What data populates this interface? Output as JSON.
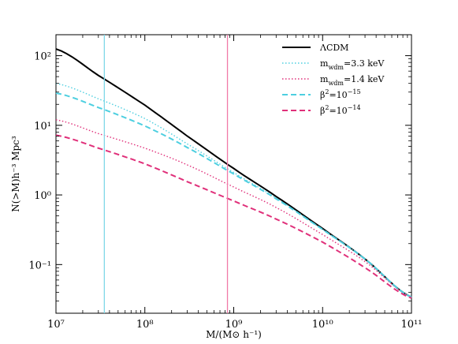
{
  "chart_data": {
    "type": "line",
    "title": "",
    "xlabel": "M/(M⊙ h⁻¹)",
    "ylabel": "N(>M)h⁻³ Mpc³",
    "xscale": "log",
    "yscale": "log",
    "xlim": [
      10000000,
      100000000000
    ],
    "ylim": [
      0.02,
      200
    ],
    "x_ticks": [
      "10⁷",
      "10⁸",
      "10⁹",
      "10¹⁰",
      "10¹¹"
    ],
    "y_ticks": [
      "10⁻¹",
      "10⁰",
      "10¹",
      "10²"
    ],
    "grid": false,
    "legend_position": "top-right",
    "x": [
      10000000,
      30000000,
      100000000,
      300000000,
      1000000000,
      3000000000,
      10000000000,
      30000000000,
      100000000000
    ],
    "series": [
      {
        "name": "ΛCDM",
        "color": "#000000",
        "style": "solid",
        "values": [
          125,
          52,
          19.5,
          7.0,
          2.4,
          0.95,
          0.33,
          0.12,
          0.034
        ]
      },
      {
        "name": "m_wdm=3.3 keV",
        "color": "#4dcfe0",
        "style": "dotted",
        "values": [
          40,
          24,
          12.5,
          5.4,
          2.1,
          0.9,
          0.32,
          0.12,
          0.034
        ]
      },
      {
        "name": "m_wdm=1.4 keV",
        "color": "#e0307a",
        "style": "dotted",
        "values": [
          12,
          7.6,
          4.7,
          2.7,
          1.3,
          0.66,
          0.27,
          0.11,
          0.034
        ]
      },
      {
        "name": "β²=10⁻¹⁵",
        "color": "#4dcfe0",
        "style": "dashed",
        "values": [
          29,
          18,
          9.8,
          4.8,
          2.0,
          0.88,
          0.32,
          0.12,
          0.034
        ]
      },
      {
        "name": "β²=10⁻¹⁴",
        "color": "#e0307a",
        "style": "dashed",
        "values": [
          7.2,
          4.7,
          2.8,
          1.55,
          0.82,
          0.45,
          0.21,
          0.09,
          0.033
        ]
      }
    ],
    "vertical_lines": [
      {
        "x": 35000000,
        "color": "#7fd8e8"
      },
      {
        "x": 850000000,
        "color": "#f07aa8"
      }
    ],
    "legend": [
      {
        "label_main": "ΛCDM",
        "label_sub": "",
        "label_rest": "",
        "label_sup": ""
      },
      {
        "label_main": "m",
        "label_sub": "wdm",
        "label_rest": "=3.3 keV",
        "label_sup": ""
      },
      {
        "label_main": "m",
        "label_sub": "wdm",
        "label_rest": "=1.4 keV",
        "label_sup": ""
      },
      {
        "label_main": "β",
        "label_sub": "",
        "label_rest": "=10",
        "label_sup": "−15",
        "pre_sup": "2"
      },
      {
        "label_main": "β",
        "label_sub": "",
        "label_rest": "=10",
        "label_sup": "−14",
        "pre_sup": "2"
      }
    ]
  }
}
